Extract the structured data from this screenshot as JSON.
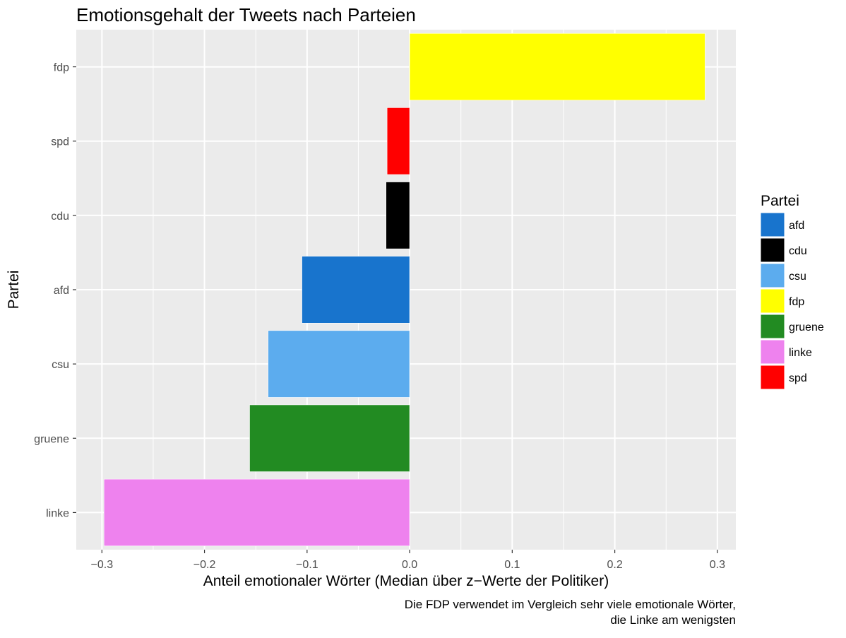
{
  "chart_data": {
    "type": "bar",
    "orientation": "horizontal",
    "title": "Emotionsgehalt der Tweets nach Parteien",
    "xlabel": "Anteil emotionaler Wörter (Median über z−Werte der Politiker)",
    "ylabel": "Partei",
    "caption_lines": [
      "Die FDP verwendet im Vergleich sehr viele emotionale Wörter,",
      "die Linke am wenigsten"
    ],
    "categories": [
      "linke",
      "gruene",
      "csu",
      "afd",
      "cdu",
      "spd",
      "fdp"
    ],
    "values": [
      -0.298,
      -0.156,
      -0.138,
      -0.105,
      -0.023,
      -0.022,
      0.288
    ],
    "bar_colors": {
      "afd": "#1874CD",
      "cdu": "#000000",
      "csu": "#5CACEE",
      "fdp": "#FFFF00",
      "gruene": "#228B22",
      "linke": "#EE82EE",
      "spd": "#FF0000"
    },
    "xlim": [
      -0.325,
      0.318
    ],
    "x_ticks": [
      -0.3,
      -0.2,
      -0.1,
      0.0,
      0.1,
      0.2,
      0.3
    ],
    "x_tick_labels": [
      "−0.3",
      "−0.2",
      "−0.1",
      "0.0",
      "0.1",
      "0.2",
      "0.3"
    ],
    "grid": true,
    "panel_background": "#EBEBEB",
    "legend": {
      "title": "Partei",
      "position": "right",
      "items": [
        "afd",
        "cdu",
        "csu",
        "fdp",
        "gruene",
        "linke",
        "spd"
      ]
    }
  }
}
